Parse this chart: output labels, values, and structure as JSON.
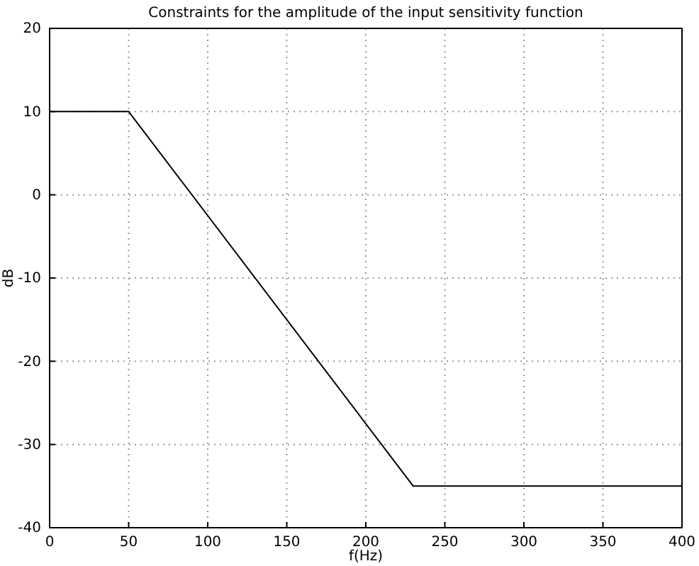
{
  "chart_data": {
    "type": "line",
    "title": "Constraints for the amplitude of the input sensitivity function",
    "xlabel": "f(Hz)",
    "ylabel": "dB",
    "x": [
      0,
      50,
      230,
      400
    ],
    "series": [
      {
        "color": "#000000",
        "values": [
          10,
          10,
          -35,
          -35
        ]
      }
    ],
    "xlim": [
      0,
      400
    ],
    "xticks": [
      0,
      50,
      100,
      150,
      200,
      250,
      300,
      350,
      400
    ],
    "ylim": [
      -40,
      20
    ],
    "yticks": [
      -40,
      -30,
      -20,
      -10,
      0,
      10,
      20
    ],
    "grid": true,
    "marker": "none",
    "line_style": "solid"
  }
}
